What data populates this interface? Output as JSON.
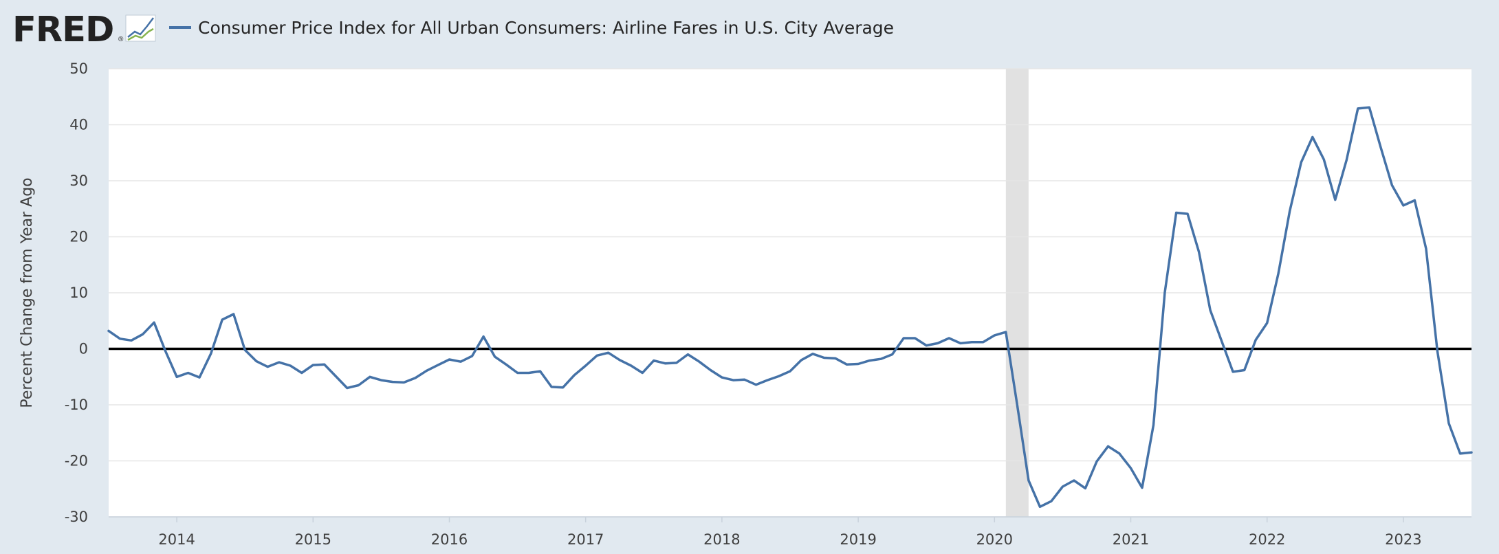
{
  "header": {
    "logo_text": "FRED",
    "logo_mark": "®",
    "legend_label": "Consumer Price Index for All Urban Consumers: Airline Fares in U.S. City Average"
  },
  "colors": {
    "series": "#4572a7",
    "zero_line": "#000000",
    "recession": "#e1e1e1",
    "grid": "#e6e6e6",
    "background": "#e1e9f0",
    "plot_background": "#ffffff"
  },
  "icons": {
    "logo": "fred-chart-logo-icon",
    "legend": "legend-line-icon"
  },
  "chart_data": {
    "type": "line",
    "title": "",
    "xlabel": "",
    "ylabel": "Percent Change from Year Ago",
    "ylim": [
      -30,
      50
    ],
    "yticks": [
      50,
      40,
      30,
      20,
      10,
      0,
      -10,
      -20,
      -30
    ],
    "xlim": [
      "2013-07",
      "2023-07"
    ],
    "xticks": [
      "2014",
      "2015",
      "2016",
      "2017",
      "2018",
      "2019",
      "2020",
      "2021",
      "2022",
      "2023"
    ],
    "grid": true,
    "legend": "top-left",
    "reference_line": 0,
    "recession": {
      "start": "2020-02",
      "end": "2020-04"
    },
    "series": [
      {
        "name": "Consumer Price Index for All Urban Consumers: Airline Fares in U.S. City Average",
        "x": [
          "2013-07",
          "2013-08",
          "2013-09",
          "2013-10",
          "2013-11",
          "2013-12",
          "2014-01",
          "2014-02",
          "2014-03",
          "2014-04",
          "2014-05",
          "2014-06",
          "2014-07",
          "2014-08",
          "2014-09",
          "2014-10",
          "2014-11",
          "2014-12",
          "2015-01",
          "2015-02",
          "2015-03",
          "2015-04",
          "2015-05",
          "2015-06",
          "2015-07",
          "2015-08",
          "2015-09",
          "2015-10",
          "2015-11",
          "2015-12",
          "2016-01",
          "2016-02",
          "2016-03",
          "2016-04",
          "2016-05",
          "2016-06",
          "2016-07",
          "2016-08",
          "2016-09",
          "2016-10",
          "2016-11",
          "2016-12",
          "2017-01",
          "2017-02",
          "2017-03",
          "2017-04",
          "2017-05",
          "2017-06",
          "2017-07",
          "2017-08",
          "2017-09",
          "2017-10",
          "2017-11",
          "2017-12",
          "2018-01",
          "2018-02",
          "2018-03",
          "2018-04",
          "2018-05",
          "2018-06",
          "2018-07",
          "2018-08",
          "2018-09",
          "2018-10",
          "2018-11",
          "2018-12",
          "2019-01",
          "2019-02",
          "2019-03",
          "2019-04",
          "2019-05",
          "2019-06",
          "2019-07",
          "2019-08",
          "2019-09",
          "2019-10",
          "2019-11",
          "2019-12",
          "2020-01",
          "2020-02",
          "2020-03",
          "2020-04",
          "2020-05",
          "2020-06",
          "2020-07",
          "2020-08",
          "2020-09",
          "2020-10",
          "2020-11",
          "2020-12",
          "2021-01",
          "2021-02",
          "2021-03",
          "2021-04",
          "2021-05",
          "2021-06",
          "2021-07",
          "2021-08",
          "2021-09",
          "2021-10",
          "2021-11",
          "2021-12",
          "2022-01",
          "2022-02",
          "2022-03",
          "2022-04",
          "2022-05",
          "2022-06",
          "2022-07",
          "2022-08",
          "2022-09",
          "2022-10",
          "2022-11",
          "2022-12",
          "2023-01",
          "2023-02",
          "2023-03",
          "2023-04",
          "2023-05",
          "2023-06",
          "2023-07"
        ],
        "values": [
          3.2,
          1.8,
          1.5,
          2.6,
          4.7,
          -0.4,
          -5.0,
          -4.3,
          -5.1,
          -0.9,
          5.2,
          6.2,
          -0.2,
          -2.2,
          -3.2,
          -2.4,
          -3.0,
          -4.3,
          -2.9,
          -2.8,
          -4.9,
          -7.0,
          -6.5,
          -5.0,
          -5.6,
          -5.9,
          -6.0,
          -5.2,
          -3.9,
          -2.9,
          -1.9,
          -2.3,
          -1.3,
          2.2,
          -1.4,
          -2.8,
          -4.3,
          -4.3,
          -4.0,
          -6.8,
          -6.9,
          -4.7,
          -3.0,
          -1.2,
          -0.7,
          -2.0,
          -3.0,
          -4.3,
          -2.1,
          -2.6,
          -2.5,
          -1.0,
          -2.3,
          -3.8,
          -5.1,
          -5.6,
          -5.5,
          -6.4,
          -5.6,
          -4.9,
          -4.0,
          -2.0,
          -0.9,
          -1.6,
          -1.7,
          -2.8,
          -2.7,
          -2.1,
          -1.8,
          -1.0,
          1.9,
          1.9,
          0.6,
          1.0,
          1.9,
          1.0,
          1.2,
          1.2,
          2.4,
          3.0,
          -10.0,
          -23.5,
          -28.2,
          -27.2,
          -24.6,
          -23.5,
          -24.9,
          -20.1,
          -17.4,
          -18.7,
          -21.3,
          -24.8,
          -13.6,
          10.1,
          24.3,
          24.1,
          17.3,
          6.9,
          1.4,
          -4.1,
          -3.8,
          1.6,
          4.6,
          13.5,
          24.6,
          33.3,
          37.8,
          33.8,
          26.6,
          33.7,
          42.9,
          43.1,
          36.0,
          29.2,
          25.6,
          26.5,
          17.9,
          -0.4,
          -13.3,
          -18.7,
          -18.5
        ]
      }
    ]
  }
}
